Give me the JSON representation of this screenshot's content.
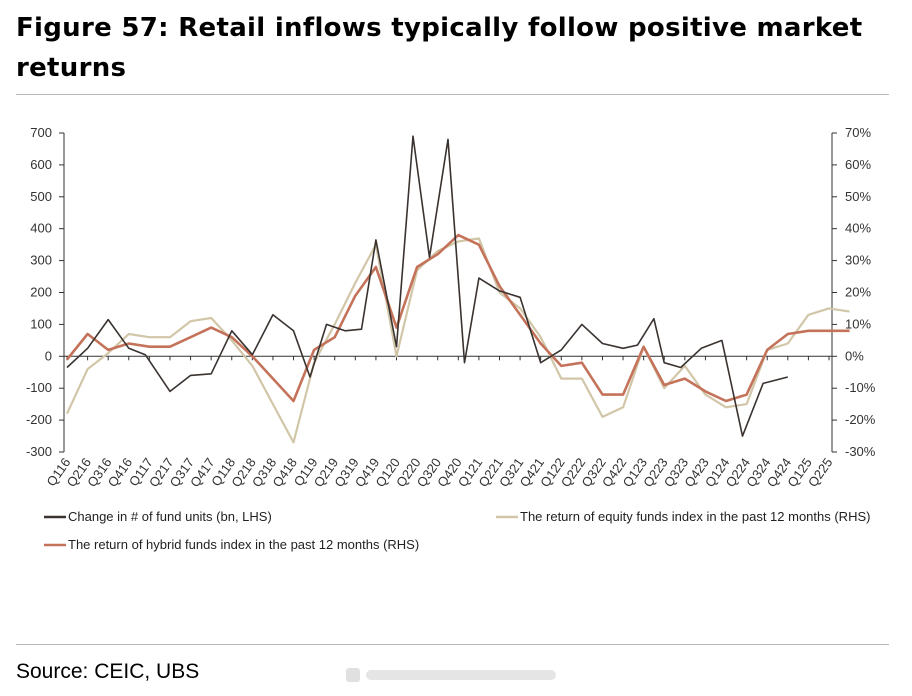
{
  "figure": {
    "title": "Figure 57: Retail inflows typically follow positive market returns",
    "source": "Source: CEIC, UBS"
  },
  "chart_data": {
    "type": "line",
    "title": "Figure 57: Retail inflows typically follow positive market returns",
    "categories": [
      "Q116",
      "Q216",
      "Q316",
      "Q416",
      "Q117",
      "Q217",
      "Q317",
      "Q417",
      "Q118",
      "Q218",
      "Q318",
      "Q418",
      "Q119",
      "Q219",
      "Q319",
      "Q419",
      "Q120",
      "Q220",
      "Q320",
      "Q420",
      "Q121",
      "Q221",
      "Q321",
      "Q421",
      "Q122",
      "Q222",
      "Q322",
      "Q422",
      "Q123",
      "Q223",
      "Q323",
      "Q423",
      "Q124",
      "Q224",
      "Q324",
      "Q424",
      "Q125",
      "Q225"
    ],
    "y_left": {
      "ylim": [
        -300,
        700
      ],
      "ticks": [
        "-300",
        "-200",
        "-100",
        "0",
        "100",
        "200",
        "300",
        "400",
        "500",
        "600",
        "700"
      ],
      "tick_values": [
        -300,
        -200,
        -100,
        0,
        100,
        200,
        300,
        400,
        500,
        600,
        700
      ]
    },
    "y_right": {
      "ylim": [
        -30,
        70
      ],
      "ticks": [
        "-30%",
        "-20%",
        "-10%",
        "0%",
        "10%",
        "20%",
        "30%",
        "40%",
        "50%",
        "60%",
        "70%"
      ],
      "tick_values": [
        -30,
        -20,
        -10,
        0,
        10,
        20,
        30,
        40,
        50,
        60,
        70
      ]
    },
    "series": [
      {
        "name": "Change in # of fund units (bn, LHS)",
        "axis": "left",
        "color": "#3a3330",
        "line_width": 1.6,
        "points": [
          [
            0,
            -35
          ],
          [
            1,
            25
          ],
          [
            2,
            115
          ],
          [
            3,
            25
          ],
          [
            3.8,
            5
          ],
          [
            5,
            -110
          ],
          [
            6,
            -60
          ],
          [
            7,
            -55
          ],
          [
            8,
            80
          ],
          [
            9,
            5
          ],
          [
            10,
            130
          ],
          [
            11,
            80
          ],
          [
            11.8,
            -65
          ],
          [
            12.6,
            100
          ],
          [
            13.5,
            80
          ],
          [
            14.3,
            85
          ],
          [
            15,
            365
          ],
          [
            16,
            30
          ],
          [
            16.8,
            690
          ],
          [
            17.6,
            310
          ],
          [
            18.5,
            680
          ],
          [
            19.3,
            -20
          ],
          [
            20,
            245
          ],
          [
            21,
            205
          ],
          [
            22,
            185
          ],
          [
            23,
            -20
          ],
          [
            24,
            20
          ],
          [
            25,
            100
          ],
          [
            26,
            40
          ],
          [
            27,
            25
          ],
          [
            27.7,
            35
          ],
          [
            28.5,
            118
          ],
          [
            29,
            -20
          ],
          [
            29.8,
            -35
          ],
          [
            30.8,
            25
          ],
          [
            31.8,
            50
          ],
          [
            32.8,
            -250
          ],
          [
            33.8,
            -85
          ],
          [
            35,
            -65
          ]
        ]
      },
      {
        "name": "The return of equity funds index in the past 12 months (RHS)",
        "axis": "right",
        "color": "#d2c6a8",
        "line_width": 2.2,
        "points": [
          [
            0,
            -18
          ],
          [
            1,
            -4
          ],
          [
            2,
            1
          ],
          [
            3,
            7
          ],
          [
            4,
            6
          ],
          [
            5,
            6
          ],
          [
            6,
            11
          ],
          [
            7,
            12
          ],
          [
            8,
            5
          ],
          [
            9,
            -3
          ],
          [
            10,
            -15
          ],
          [
            11,
            -27
          ],
          [
            12,
            -2
          ],
          [
            13,
            10
          ],
          [
            14,
            23
          ],
          [
            15,
            35
          ],
          [
            16,
            0
          ],
          [
            17,
            27
          ],
          [
            18,
            33
          ],
          [
            19,
            36
          ],
          [
            20,
            37
          ],
          [
            21,
            20
          ],
          [
            22,
            15
          ],
          [
            23,
            6
          ],
          [
            24,
            -7
          ],
          [
            25,
            -7
          ],
          [
            26,
            -19
          ],
          [
            27,
            -16
          ],
          [
            28,
            3
          ],
          [
            29,
            -10
          ],
          [
            30,
            -3
          ],
          [
            31,
            -12
          ],
          [
            32,
            -16
          ],
          [
            33,
            -15
          ],
          [
            34,
            2
          ],
          [
            35,
            4
          ],
          [
            36,
            13
          ],
          [
            37,
            15
          ],
          [
            38,
            14
          ]
        ]
      },
      {
        "name": "The return of hybrid funds index in the past 12 months (RHS)",
        "axis": "right",
        "color": "#c4735a",
        "line_width": 2.6,
        "points": [
          [
            0,
            -1
          ],
          [
            1,
            7
          ],
          [
            2,
            2
          ],
          [
            3,
            4
          ],
          [
            4,
            3
          ],
          [
            5,
            3
          ],
          [
            6,
            6
          ],
          [
            7,
            9
          ],
          [
            8,
            6
          ],
          [
            9,
            0
          ],
          [
            10,
            -7
          ],
          [
            11,
            -14
          ],
          [
            12,
            2
          ],
          [
            13,
            6
          ],
          [
            14,
            19
          ],
          [
            15,
            28
          ],
          [
            16,
            9
          ],
          [
            17,
            28
          ],
          [
            18,
            32
          ],
          [
            19,
            38
          ],
          [
            20,
            35
          ],
          [
            21,
            22
          ],
          [
            22,
            13
          ],
          [
            23,
            4
          ],
          [
            24,
            -3
          ],
          [
            25,
            -2
          ],
          [
            26,
            -12
          ],
          [
            27,
            -12
          ],
          [
            28,
            3
          ],
          [
            29,
            -9
          ],
          [
            30,
            -7
          ],
          [
            31,
            -11
          ],
          [
            32,
            -14
          ],
          [
            33,
            -12
          ],
          [
            34,
            2
          ],
          [
            35,
            7
          ],
          [
            36,
            8
          ],
          [
            37,
            8
          ],
          [
            38,
            8
          ]
        ]
      }
    ],
    "legend": {
      "items": [
        "Change in # of fund units (bn, LHS)",
        "The return of equity funds index in the past 12 months (RHS)",
        "The return of hybrid funds index in the past 12 months (RHS)"
      ]
    },
    "grid": false
  }
}
